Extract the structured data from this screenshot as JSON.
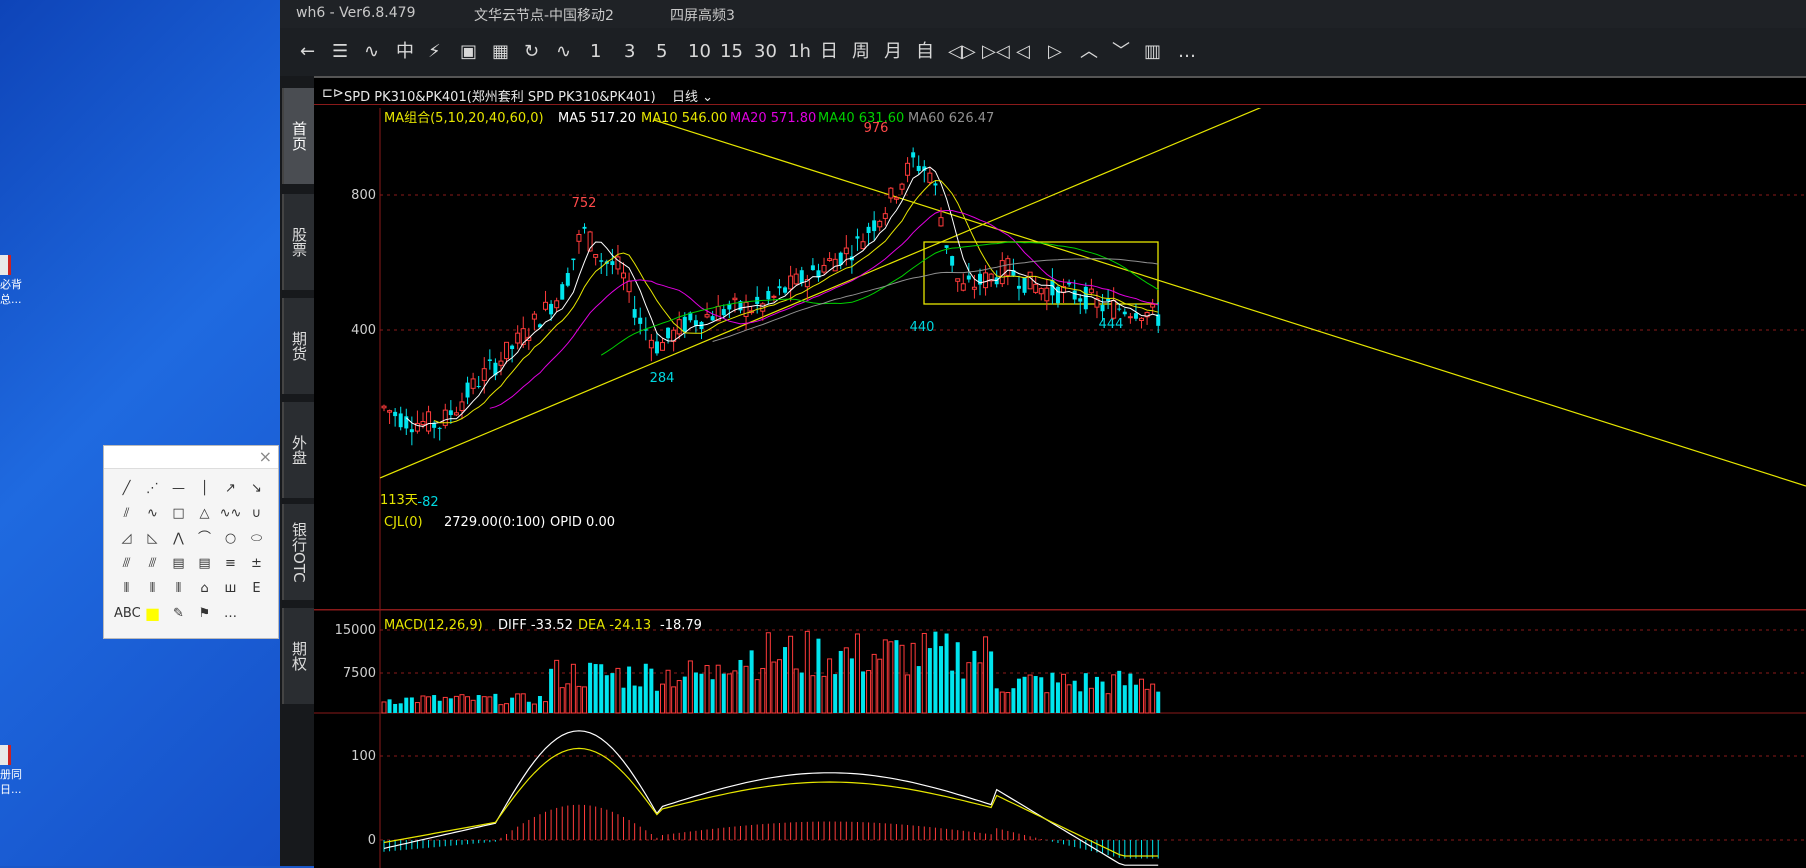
{
  "desktop": {
    "icon1_lines": [
      "必背",
      "总..."
    ],
    "icon2_lines": [
      "册同",
      "日..."
    ]
  },
  "titlebar": {
    "app": "wh6  -  Ver6.8.479",
    "server": "文华云节点-中国移动2",
    "mode": "四屏高频3"
  },
  "toolbar": {
    "items": [
      "←",
      "☰",
      "∿",
      "中",
      "⚡",
      "▣",
      "▦",
      "↻",
      "∿",
      "1",
      "3",
      "5",
      "10",
      "15",
      "30",
      "1h",
      "日",
      "周",
      "月",
      "自",
      "◁▷",
      "▷◁",
      "◁",
      "▷",
      "︿",
      "﹀",
      "▥",
      "…"
    ]
  },
  "side_tabs": [
    "首页",
    "股票",
    "期货",
    "外盘",
    "银行OTC",
    "期权"
  ],
  "instrument": {
    "name": "SPD PK310&PK401(郑州套利 SPD PK310&PK401)",
    "period": "日线"
  },
  "ma_legend": {
    "label": "MA组合(5,10,20,40,60,0)",
    "ma5": "MA5 517.20",
    "ma10": "MA10 546.00",
    "ma20": "MA20 571.80",
    "ma40": "MA40 631.60",
    "ma60": "MA60 626.47",
    "colors": {
      "ma5": "#ffffff",
      "ma10": "#e6e600",
      "ma20": "#e000e0",
      "ma40": "#00d000",
      "ma60": "#909090"
    }
  },
  "price_panel": {
    "y_ticks": [
      "800",
      "400"
    ],
    "annotations": [
      "976",
      "752",
      "284",
      "440",
      "444",
      "-82"
    ],
    "days_label": "113天"
  },
  "volume_panel": {
    "label": "CJL(0)",
    "value": "2729.00(0:100)",
    "opid": "OPID 0.00",
    "y_ticks": [
      "15000",
      "7500"
    ]
  },
  "macd_panel": {
    "label": "MACD(12,26,9)",
    "diff": "DIFF -33.52",
    "dea": "DEA -24.13",
    "macd": "-18.79",
    "y_ticks": [
      "100",
      "0"
    ]
  },
  "draw_tools": {
    "close": "×",
    "rows": [
      [
        "╱",
        "⋰",
        "—",
        "│",
        "↗",
        "↘"
      ],
      [
        "⫽",
        "∿",
        "□",
        "△",
        "∿∿",
        "∪"
      ],
      [
        "◿",
        "◺",
        "⋀",
        "⌒",
        "○",
        "⬭"
      ],
      [
        "⫻",
        "⫻",
        "▤",
        "▤",
        "≡",
        "±"
      ],
      [
        "⦀",
        "⦀",
        "⦀",
        "⌂",
        "ш",
        "Ε"
      ],
      [
        "ABC",
        "■",
        "✎",
        "⚑",
        "…",
        ""
      ]
    ]
  },
  "colors": {
    "up": "#ff3b3b",
    "down": "#00e5ee",
    "grid": "#8a1a1a",
    "annotation_up": "#ff4a4a",
    "annotation_down": "#00d8e0",
    "trendline": "#e6e600"
  }
}
